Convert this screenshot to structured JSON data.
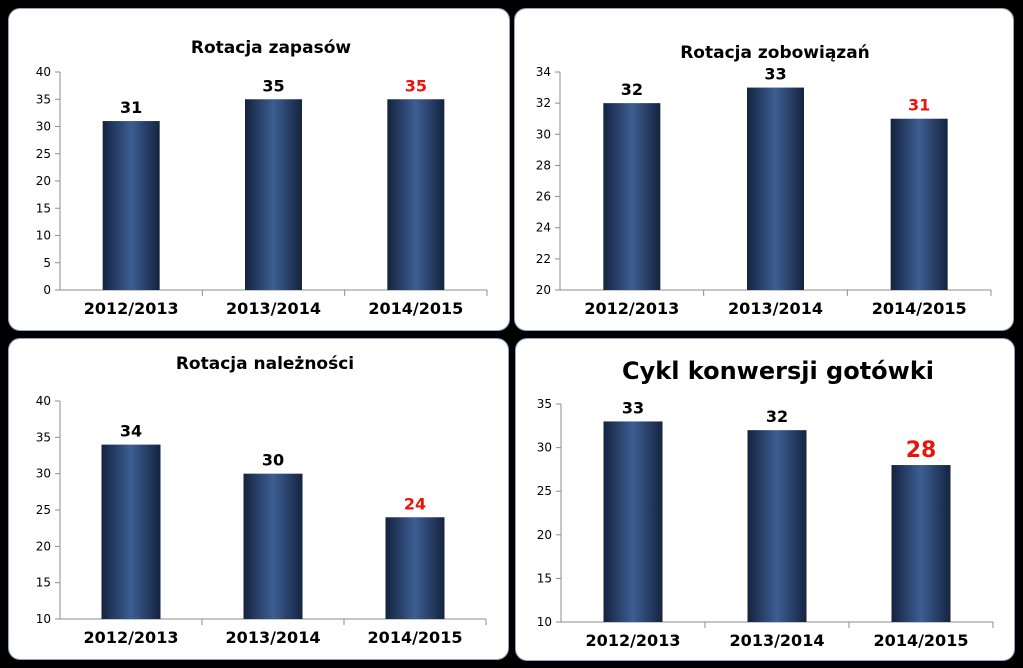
{
  "chart_data": [
    {
      "type": "bar",
      "title": "Rotacja zapasów",
      "categories": [
        "2012/2013",
        "2013/2014",
        "2014/2015"
      ],
      "values": [
        31,
        35,
        35
      ],
      "data_labels": [
        "31",
        "35",
        "35"
      ],
      "ylim": [
        0,
        40
      ],
      "yticks": [
        0,
        5,
        10,
        15,
        20,
        25,
        30,
        35,
        40
      ],
      "ytick_labels": [
        "0",
        "5",
        "10",
        "15",
        "20",
        "25",
        "30",
        "35",
        "40"
      ],
      "label_colors": [
        "#000000",
        "#000000",
        "#e8150e"
      ],
      "grid": false,
      "legend": "none"
    },
    {
      "type": "bar",
      "title": "Rotacja zobowiązań",
      "categories": [
        "2012/2013",
        "2013/2014",
        "2014/2015"
      ],
      "values": [
        32,
        33,
        31
      ],
      "data_labels": [
        "32",
        "33",
        "31"
      ],
      "ylim": [
        20,
        34
      ],
      "yticks": [
        20,
        22,
        24,
        26,
        28,
        30,
        32,
        34
      ],
      "ytick_labels": [
        "20",
        "22",
        "24",
        "26",
        "28",
        "30",
        "32",
        "34"
      ],
      "label_colors": [
        "#000000",
        "#000000",
        "#e8150e"
      ],
      "grid": false,
      "legend": "none"
    },
    {
      "type": "bar",
      "title": "Rotacja należności",
      "categories": [
        "2012/2013",
        "2013/2014",
        "2014/2015"
      ],
      "values": [
        34,
        30,
        24
      ],
      "data_labels": [
        "34",
        "30",
        "24"
      ],
      "ylim": [
        10,
        40
      ],
      "yticks": [
        10,
        15,
        20,
        25,
        30,
        35,
        40
      ],
      "ytick_labels": [
        "10",
        "15",
        "20",
        "25",
        "30",
        "35",
        "40"
      ],
      "label_colors": [
        "#000000",
        "#000000",
        "#e8150e"
      ],
      "grid": false,
      "legend": "none"
    },
    {
      "type": "bar",
      "title": "Cykl konwersji gotówki",
      "categories": [
        "2012/2013",
        "2013/2014",
        "2014/2015"
      ],
      "values": [
        33,
        32,
        28
      ],
      "data_labels": [
        "33",
        "32",
        "28"
      ],
      "ylim": [
        10,
        35
      ],
      "yticks": [
        10,
        15,
        20,
        25,
        30,
        35
      ],
      "ytick_labels": [
        "10",
        "15",
        "20",
        "25",
        "30",
        "35"
      ],
      "label_colors": [
        "#000000",
        "#000000",
        "#e8150e"
      ],
      "grid": false,
      "legend": "none"
    }
  ],
  "colors": {
    "background": "#000000",
    "panel": "#ffffff",
    "bar_dark": "#14233f",
    "bar_light": "#3d5e93",
    "highlight_label": "#e8150e",
    "axis": "#8c8c8c"
  }
}
